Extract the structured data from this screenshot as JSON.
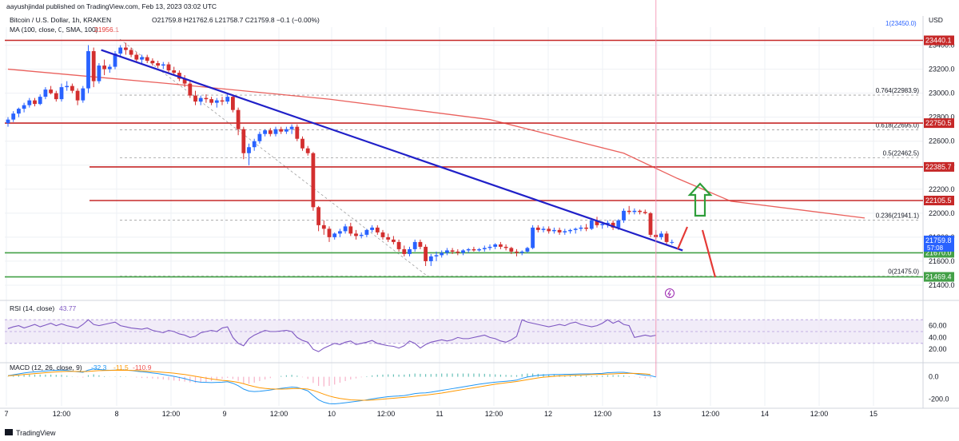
{
  "header": {
    "publisher": "aayushjindal published on TradingView.com, Feb 13, 2023 03:02 UTC",
    "symbol": "Bitcoin / U.S. Dollar, 1h, KRAKEN",
    "ohlc": "O21759.8 H21762.6 L21758.7 C21759.8 −0.1 (−0.00%)",
    "ma_label": "MA (100, close, 0, SMA, 100)",
    "ma_value": "21956.1",
    "currency": "USD",
    "top_right_label": "1(23450.0)"
  },
  "footer": {
    "brand": "TradingView"
  },
  "colors": {
    "bull": "#2962ff",
    "bear": "#d32f2f",
    "ma": "#e53935",
    "trendline": "#2020c8",
    "support": "#43a047",
    "resistance": "#c62828",
    "rsi": "#7e57c2",
    "macd": "#2196f3",
    "signal": "#ff9800"
  },
  "chart_data": {
    "type": "candlestick",
    "symbol": "Bitcoin / U.S. Dollar",
    "interval": "1h",
    "exchange": "KRAKEN",
    "ylim": [
      21300,
      23550
    ],
    "y_ticks": [
      21400,
      21600,
      21800,
      22000,
      22200,
      22400,
      22600,
      22800,
      23000,
      23200,
      23400
    ],
    "x_ticks": [
      "7",
      "12:00",
      "8",
      "12:00",
      "9",
      "12:00",
      "10",
      "12:00",
      "11",
      "12:00",
      "12",
      "12:00",
      "13",
      "12:00",
      "14",
      "12:00",
      "15"
    ],
    "candles": [
      [
        22750,
        22800,
        22720,
        22780
      ],
      [
        22780,
        22850,
        22760,
        22830
      ],
      [
        22830,
        22880,
        22800,
        22870
      ],
      [
        22870,
        22920,
        22840,
        22900
      ],
      [
        22900,
        22960,
        22880,
        22940
      ],
      [
        22940,
        22960,
        22890,
        22910
      ],
      [
        22910,
        22990,
        22900,
        22970
      ],
      [
        22970,
        23050,
        22950,
        23030
      ],
      [
        23030,
        23060,
        22990,
        23000
      ],
      [
        23000,
        23020,
        22930,
        22950
      ],
      [
        22950,
        23080,
        22930,
        23050
      ],
      [
        23050,
        23100,
        23020,
        23060
      ],
      [
        23060,
        23080,
        23000,
        23020
      ],
      [
        23020,
        23040,
        22900,
        22940
      ],
      [
        22940,
        23060,
        22920,
        23040
      ],
      [
        23040,
        23400,
        23000,
        23350
      ],
      [
        23350,
        23380,
        23050,
        23100
      ],
      [
        23100,
        23250,
        23080,
        23230
      ],
      [
        23230,
        23280,
        23150,
        23200
      ],
      [
        23200,
        23240,
        23170,
        23220
      ],
      [
        23220,
        23350,
        23200,
        23330
      ],
      [
        23330,
        23400,
        23300,
        23380
      ],
      [
        23380,
        23420,
        23320,
        23360
      ],
      [
        23360,
        23380,
        23300,
        23320
      ],
      [
        23320,
        23340,
        23260,
        23280
      ],
      [
        23280,
        23320,
        23240,
        23300
      ],
      [
        23300,
        23320,
        23250,
        23270
      ],
      [
        23270,
        23290,
        23230,
        23250
      ],
      [
        23250,
        23270,
        23210,
        23230
      ],
      [
        23230,
        23260,
        23200,
        23240
      ],
      [
        23240,
        23260,
        23170,
        23190
      ],
      [
        23190,
        23220,
        23150,
        23170
      ],
      [
        23170,
        23190,
        23100,
        23120
      ],
      [
        23120,
        23150,
        23050,
        23080
      ],
      [
        23080,
        23100,
        22960,
        22980
      ],
      [
        22980,
        23020,
        22900,
        22930
      ],
      [
        22930,
        22980,
        22900,
        22960
      ],
      [
        22960,
        22990,
        22920,
        22950
      ],
      [
        22950,
        22970,
        22900,
        22920
      ],
      [
        22920,
        22960,
        22880,
        22940
      ],
      [
        22940,
        22970,
        22900,
        22930
      ],
      [
        22930,
        22990,
        22910,
        22970
      ],
      [
        22970,
        22990,
        22840,
        22860
      ],
      [
        22860,
        22880,
        22650,
        22700
      ],
      [
        22700,
        22720,
        22450,
        22500
      ],
      [
        22500,
        22580,
        22400,
        22550
      ],
      [
        22550,
        22620,
        22520,
        22600
      ],
      [
        22600,
        22680,
        22580,
        22660
      ],
      [
        22660,
        22700,
        22640,
        22690
      ],
      [
        22690,
        22710,
        22640,
        22660
      ],
      [
        22660,
        22720,
        22640,
        22700
      ],
      [
        22700,
        22720,
        22660,
        22680
      ],
      [
        22680,
        22720,
        22660,
        22700
      ],
      [
        22700,
        22740,
        22660,
        22720
      ],
      [
        22720,
        22740,
        22600,
        22620
      ],
      [
        22620,
        22640,
        22520,
        22540
      ],
      [
        22540,
        22560,
        22480,
        22500
      ],
      [
        22500,
        22510,
        22020,
        22050
      ],
      [
        22050,
        22060,
        21850,
        21900
      ],
      [
        21900,
        21940,
        21820,
        21870
      ],
      [
        21870,
        21890,
        21760,
        21800
      ],
      [
        21800,
        21840,
        21780,
        21830
      ],
      [
        21830,
        21870,
        21800,
        21850
      ],
      [
        21850,
        21910,
        21830,
        21890
      ],
      [
        21890,
        21920,
        21810,
        21830
      ],
      [
        21830,
        21860,
        21780,
        21810
      ],
      [
        21810,
        21840,
        21790,
        21820
      ],
      [
        21820,
        21870,
        21800,
        21860
      ],
      [
        21860,
        21900,
        21840,
        21880
      ],
      [
        21880,
        21900,
        21820,
        21840
      ],
      [
        21840,
        21860,
        21780,
        21800
      ],
      [
        21800,
        21830,
        21760,
        21780
      ],
      [
        21780,
        21810,
        21740,
        21760
      ],
      [
        21760,
        21780,
        21680,
        21700
      ],
      [
        21700,
        21730,
        21640,
        21660
      ],
      [
        21660,
        21720,
        21640,
        21700
      ],
      [
        21700,
        21780,
        21680,
        21760
      ],
      [
        21760,
        21780,
        21700,
        21720
      ],
      [
        21720,
        21740,
        21560,
        21600
      ],
      [
        21600,
        21660,
        21560,
        21640
      ],
      [
        21640,
        21680,
        21600,
        21650
      ],
      [
        21650,
        21690,
        21630,
        21670
      ],
      [
        21670,
        21710,
        21650,
        21690
      ],
      [
        21690,
        21710,
        21660,
        21680
      ],
      [
        21680,
        21700,
        21650,
        21670
      ],
      [
        21670,
        21700,
        21650,
        21690
      ],
      [
        21690,
        21710,
        21670,
        21700
      ],
      [
        21700,
        21720,
        21680,
        21690
      ],
      [
        21690,
        21710,
        21680,
        21700
      ],
      [
        21700,
        21730,
        21680,
        21710
      ],
      [
        21710,
        21740,
        21690,
        21720
      ],
      [
        21720,
        21750,
        21700,
        21740
      ],
      [
        21740,
        21760,
        21700,
        21720
      ],
      [
        21720,
        21740,
        21690,
        21710
      ],
      [
        21710,
        21720,
        21660,
        21680
      ],
      [
        21680,
        21700,
        21640,
        21670
      ],
      [
        21670,
        21690,
        21650,
        21680
      ],
      [
        21680,
        21720,
        21670,
        21710
      ],
      [
        21710,
        21900,
        21700,
        21880
      ],
      [
        21880,
        21900,
        21840,
        21860
      ],
      [
        21860,
        21890,
        21840,
        21870
      ],
      [
        21870,
        21890,
        21830,
        21850
      ],
      [
        21850,
        21880,
        21830,
        21860
      ],
      [
        21860,
        21880,
        21820,
        21840
      ],
      [
        21840,
        21870,
        21820,
        21850
      ],
      [
        21850,
        21870,
        21830,
        21860
      ],
      [
        21860,
        21880,
        21830,
        21870
      ],
      [
        21870,
        21900,
        21850,
        21880
      ],
      [
        21880,
        21910,
        21850,
        21870
      ],
      [
        21870,
        21960,
        21860,
        21940
      ],
      [
        21940,
        21970,
        21880,
        21900
      ],
      [
        21900,
        21930,
        21870,
        21910
      ],
      [
        21910,
        21940,
        21880,
        21920
      ],
      [
        21920,
        21940,
        21860,
        21880
      ],
      [
        21880,
        21950,
        21860,
        21940
      ],
      [
        21940,
        22040,
        21920,
        22020
      ],
      [
        22020,
        22060,
        21990,
        22010
      ],
      [
        22010,
        22040,
        21990,
        22020
      ],
      [
        22020,
        22030,
        21990,
        22010
      ],
      [
        22010,
        22030,
        21990,
        22000
      ],
      [
        22000,
        22010,
        21800,
        21820
      ],
      [
        21820,
        21860,
        21780,
        21800
      ],
      [
        21800,
        21850,
        21780,
        21830
      ],
      [
        21830,
        21850,
        21740,
        21760
      ],
      [
        21760,
        21780,
        21740,
        21760
      ]
    ],
    "moving_average": {
      "name": "MA (100, close, 0, SMA, 100)",
      "value": 21956.1,
      "points": [
        [
          0,
          23200
        ],
        [
          30,
          23080
        ],
        [
          60,
          22950
        ],
        [
          90,
          22780
        ],
        [
          115,
          22500
        ],
        [
          125,
          22290
        ],
        [
          135,
          22100
        ],
        [
          160,
          21960
        ]
      ]
    },
    "trendline": {
      "from": [
        18,
        23360
      ],
      "to": [
        126,
        21690
      ]
    },
    "horizontal_levels": [
      {
        "label": "23440.1",
        "value": 23440.1,
        "kind": "resistance"
      },
      {
        "label": "22750.5",
        "value": 22750.5,
        "kind": "resistance"
      },
      {
        "label": "22385.7",
        "value": 22385.7,
        "kind": "resistance"
      },
      {
        "label": "22105.5",
        "value": 22105.5,
        "kind": "resistance"
      },
      {
        "label": "21670.0",
        "value": 21670.0,
        "kind": "support"
      },
      {
        "label": "21469.4",
        "value": 21469.4,
        "kind": "support"
      }
    ],
    "fibonacci": [
      {
        "label": "0.764(22983.9)",
        "value": 22983.9
      },
      {
        "label": "0.618(22695.0)",
        "value": 22695.0
      },
      {
        "label": "0.5(22462.5)",
        "value": 22462.5
      },
      {
        "label": "0.236(21941.1)",
        "value": 21941.1
      },
      {
        "label": "0(21475.0)",
        "value": 21475.0
      }
    ],
    "price_tags": [
      {
        "label": "21759.8",
        "sub": "57:08",
        "value": 21759.8
      }
    ],
    "annotations": {
      "green_arrow": "up",
      "red_path": "up then down"
    },
    "rsi": {
      "label": "RSI (14, close)",
      "value": "43.77",
      "ylim": [
        0,
        100
      ],
      "ticks": [
        20,
        40,
        60
      ],
      "band": [
        30,
        70
      ],
      "values": [
        55,
        58,
        60,
        56,
        59,
        62,
        58,
        61,
        64,
        60,
        63,
        60,
        58,
        56,
        62,
        70,
        62,
        60,
        62,
        64,
        66,
        60,
        58,
        56,
        55,
        54,
        56,
        52,
        50,
        48,
        52,
        50,
        46,
        44,
        40,
        42,
        48,
        50,
        52,
        50,
        56,
        58,
        40,
        30,
        26,
        38,
        44,
        48,
        52,
        50,
        50,
        51,
        52,
        50,
        40,
        35,
        32,
        20,
        16,
        22,
        26,
        30,
        28,
        32,
        34,
        28,
        30,
        32,
        35,
        30,
        28,
        26,
        25,
        22,
        26,
        34,
        30,
        22,
        28,
        32,
        34,
        36,
        34,
        36,
        40,
        38,
        38,
        40,
        42,
        44,
        40,
        38,
        34,
        32,
        36,
        42,
        70,
        66,
        64,
        62,
        60,
        58,
        60,
        62,
        60,
        64,
        66,
        62,
        60,
        58,
        60,
        64,
        70,
        64,
        68,
        62,
        60,
        40,
        42,
        44,
        42,
        43.77
      ]
    },
    "macd": {
      "label": "MACD (12, 26, close, 9)",
      "values_shown": [
        "-32.3",
        "-11.5",
        "-110.9"
      ],
      "ylim": [
        -260,
        140
      ],
      "ticks": [
        -200,
        0
      ],
      "macd": [
        10,
        18,
        26,
        34,
        40,
        44,
        48,
        52,
        56,
        58,
        60,
        56,
        50,
        44,
        40,
        60,
        70,
        66,
        60,
        58,
        60,
        62,
        60,
        56,
        50,
        44,
        40,
        34,
        28,
        20,
        12,
        4,
        -6,
        -16,
        -30,
        -42,
        -48,
        -50,
        -52,
        -50,
        -48,
        -44,
        -58,
        -80,
        -110,
        -128,
        -132,
        -130,
        -124,
        -118,
        -110,
        -104,
        -98,
        -92,
        -96,
        -110,
        -126,
        -168,
        -206,
        -228,
        -240,
        -242,
        -238,
        -232,
        -226,
        -220,
        -214,
        -206,
        -198,
        -190,
        -184,
        -178,
        -174,
        -172,
        -168,
        -160,
        -150,
        -146,
        -144,
        -138,
        -130,
        -122,
        -114,
        -106,
        -98,
        -90,
        -82,
        -74,
        -66,
        -60,
        -54,
        -48,
        -44,
        -40,
        -36,
        -30,
        -14,
        -2,
        6,
        12,
        16,
        18,
        20,
        20,
        22,
        22,
        24,
        26,
        26,
        26,
        28,
        30,
        36,
        38,
        40,
        40,
        34,
        28,
        20,
        14,
        10,
        -2
      ],
      "signal": [
        8,
        12,
        16,
        20,
        24,
        28,
        32,
        36,
        40,
        44,
        46,
        48,
        48,
        47,
        46,
        48,
        52,
        55,
        56,
        57,
        58,
        58,
        58,
        57,
        55,
        53,
        50,
        47,
        44,
        40,
        36,
        32,
        26,
        20,
        12,
        4,
        -4,
        -12,
        -20,
        -26,
        -32,
        -36,
        -42,
        -50,
        -62,
        -76,
        -88,
        -98,
        -104,
        -108,
        -110,
        -110,
        -109,
        -106,
        -104,
        -106,
        -110,
        -122,
        -138,
        -156,
        -172,
        -184,
        -194,
        -200,
        -206,
        -208,
        -210,
        -210,
        -208,
        -204,
        -200,
        -196,
        -192,
        -188,
        -184,
        -180,
        -174,
        -168,
        -164,
        -158,
        -152,
        -146,
        -138,
        -130,
        -122,
        -114,
        -106,
        -98,
        -90,
        -82,
        -74,
        -66,
        -60,
        -54,
        -48,
        -42,
        -34,
        -26,
        -18,
        -10,
        -4,
        0,
        4,
        8,
        10,
        12,
        14,
        16,
        18,
        20,
        20,
        22,
        24,
        26,
        28,
        30,
        30,
        30,
        28,
        26,
        20
      ]
    }
  }
}
